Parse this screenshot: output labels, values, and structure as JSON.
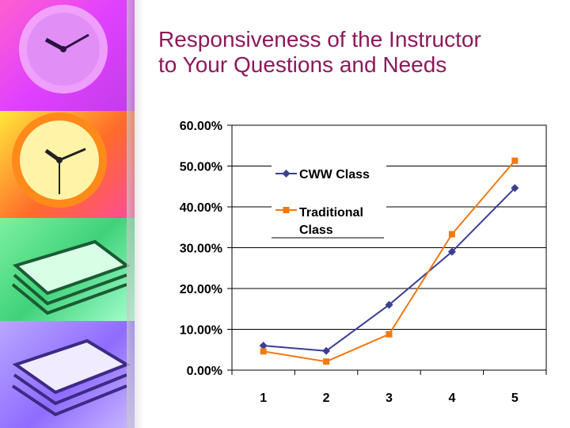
{
  "slide": {
    "title_line1": "Responsiveness of the Instructor",
    "title_line2": "to Your Questions and Needs"
  },
  "colors": {
    "title": "#8b1a5a",
    "cww_series": "#3b3e93",
    "traditional_series": "#f07a12"
  },
  "chart_data": {
    "type": "line",
    "x": [
      1,
      2,
      3,
      4,
      5
    ],
    "y_tick_labels": [
      "0.00%",
      "10.00%",
      "20.00%",
      "30.00%",
      "40.00%",
      "50.00%",
      "60.00%"
    ],
    "ylim": [
      0,
      60
    ],
    "grid": true,
    "legend_position": "top-left",
    "series": [
      {
        "name": "CWW Class",
        "marker": "diamond",
        "color": "#3b3e93",
        "values": [
          6.0,
          4.7,
          16.0,
          29.0,
          44.6
        ]
      },
      {
        "name_line1": "Traditional",
        "name_line2": "Class",
        "marker": "square",
        "color": "#f07a12",
        "values": [
          4.6,
          2.1,
          8.8,
          33.3,
          51.3
        ]
      }
    ]
  }
}
